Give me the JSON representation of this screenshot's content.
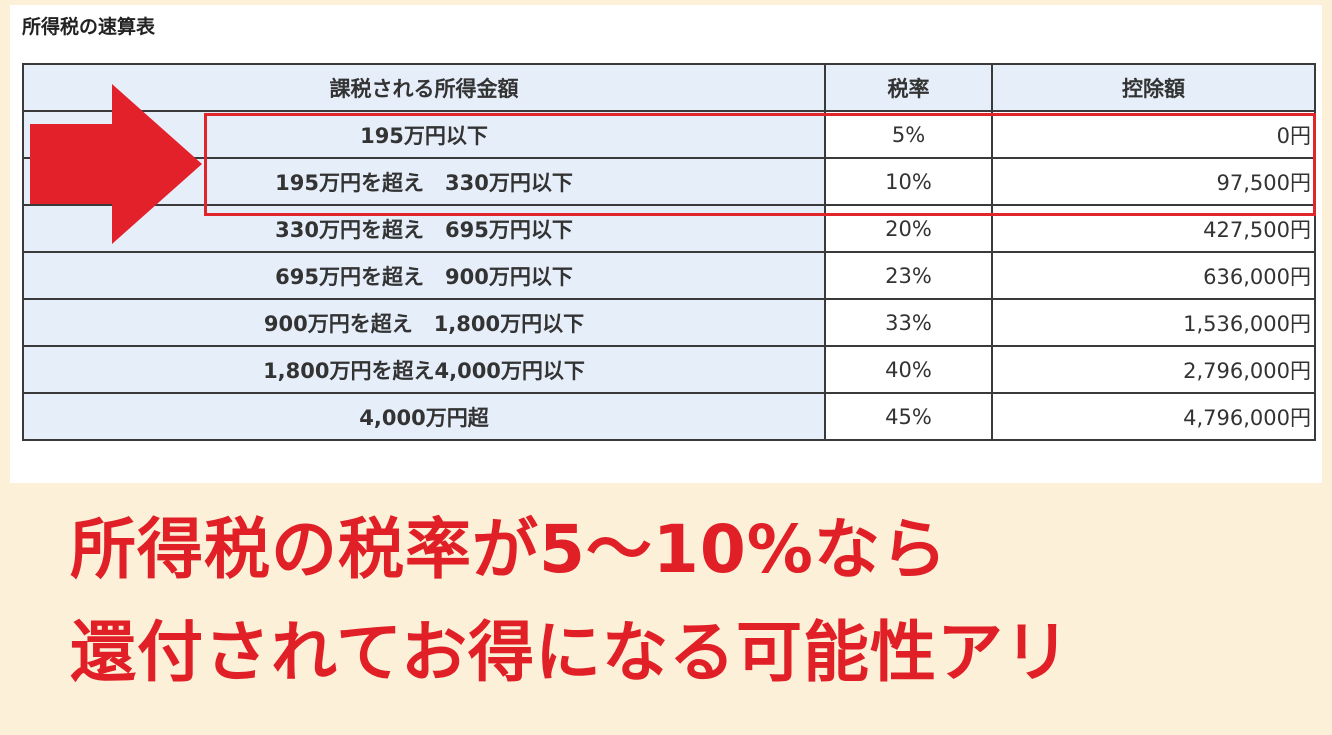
{
  "table": {
    "title": "所得税の速算表",
    "headers": [
      "課税される所得金額",
      "税率",
      "控除額"
    ],
    "rows": [
      {
        "range": "195万円以下",
        "rate": "5%",
        "deduction": "0円"
      },
      {
        "range": "195万円を超え　330万円以下",
        "rate": "10%",
        "deduction": "97,500円"
      },
      {
        "range": "330万円を超え　695万円以下",
        "rate": "20%",
        "deduction": "427,500円"
      },
      {
        "range": "695万円を超え　900万円以下",
        "rate": "23%",
        "deduction": "636,000円"
      },
      {
        "range": "900万円を超え　1,800万円以下",
        "rate": "33%",
        "deduction": "1,536,000円"
      },
      {
        "range": "1,800万円を超え4,000万円以下",
        "rate": "40%",
        "deduction": "2,796,000円"
      },
      {
        "range": "4,000万円超",
        "rate": "45%",
        "deduction": "4,796,000円"
      }
    ]
  },
  "caption": {
    "line1": "所得税の税率が5～10%なら",
    "line2": "還付されてお得になる可能性アリ"
  },
  "colors": {
    "accent": "#e01f26",
    "background": "#fdf0d8",
    "header_fill": "#e6eefa"
  }
}
